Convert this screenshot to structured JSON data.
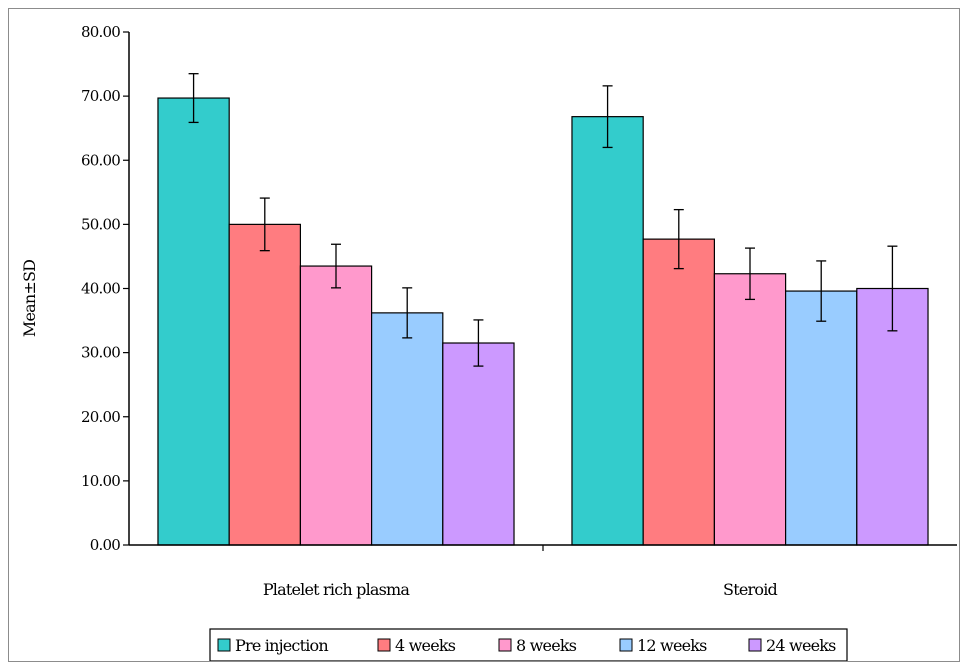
{
  "chart_data": {
    "type": "bar",
    "title": "",
    "xlabel": "",
    "ylabel": "Mean±SD",
    "ylim": [
      0,
      80
    ],
    "yticks": [
      "0.00",
      "10.00",
      "20.00",
      "30.00",
      "40.00",
      "50.00",
      "60.00",
      "70.00",
      "80.00"
    ],
    "categories": [
      "Platelet rich plasma",
      "Steroid"
    ],
    "series": [
      {
        "name": "Pre injection",
        "color": "#33cccc",
        "values": [
          69.7,
          66.8
        ],
        "sd": [
          3.8,
          4.8
        ]
      },
      {
        "name": "4 weeks",
        "color": "#ff7c80",
        "values": [
          50.0,
          47.7
        ],
        "sd": [
          4.1,
          4.6
        ]
      },
      {
        "name": "8 weeks",
        "color": "#ff99cc",
        "values": [
          43.5,
          42.3
        ],
        "sd": [
          3.4,
          4.0
        ]
      },
      {
        "name": "12 weeks",
        "color": "#99ccff",
        "values": [
          36.2,
          39.6
        ],
        "sd": [
          3.9,
          4.7
        ]
      },
      {
        "name": "24 weeks",
        "color": "#cc99ff",
        "values": [
          31.5,
          40.0
        ],
        "sd": [
          3.6,
          6.6
        ]
      }
    ],
    "grid": false,
    "legend_position": "bottom"
  }
}
